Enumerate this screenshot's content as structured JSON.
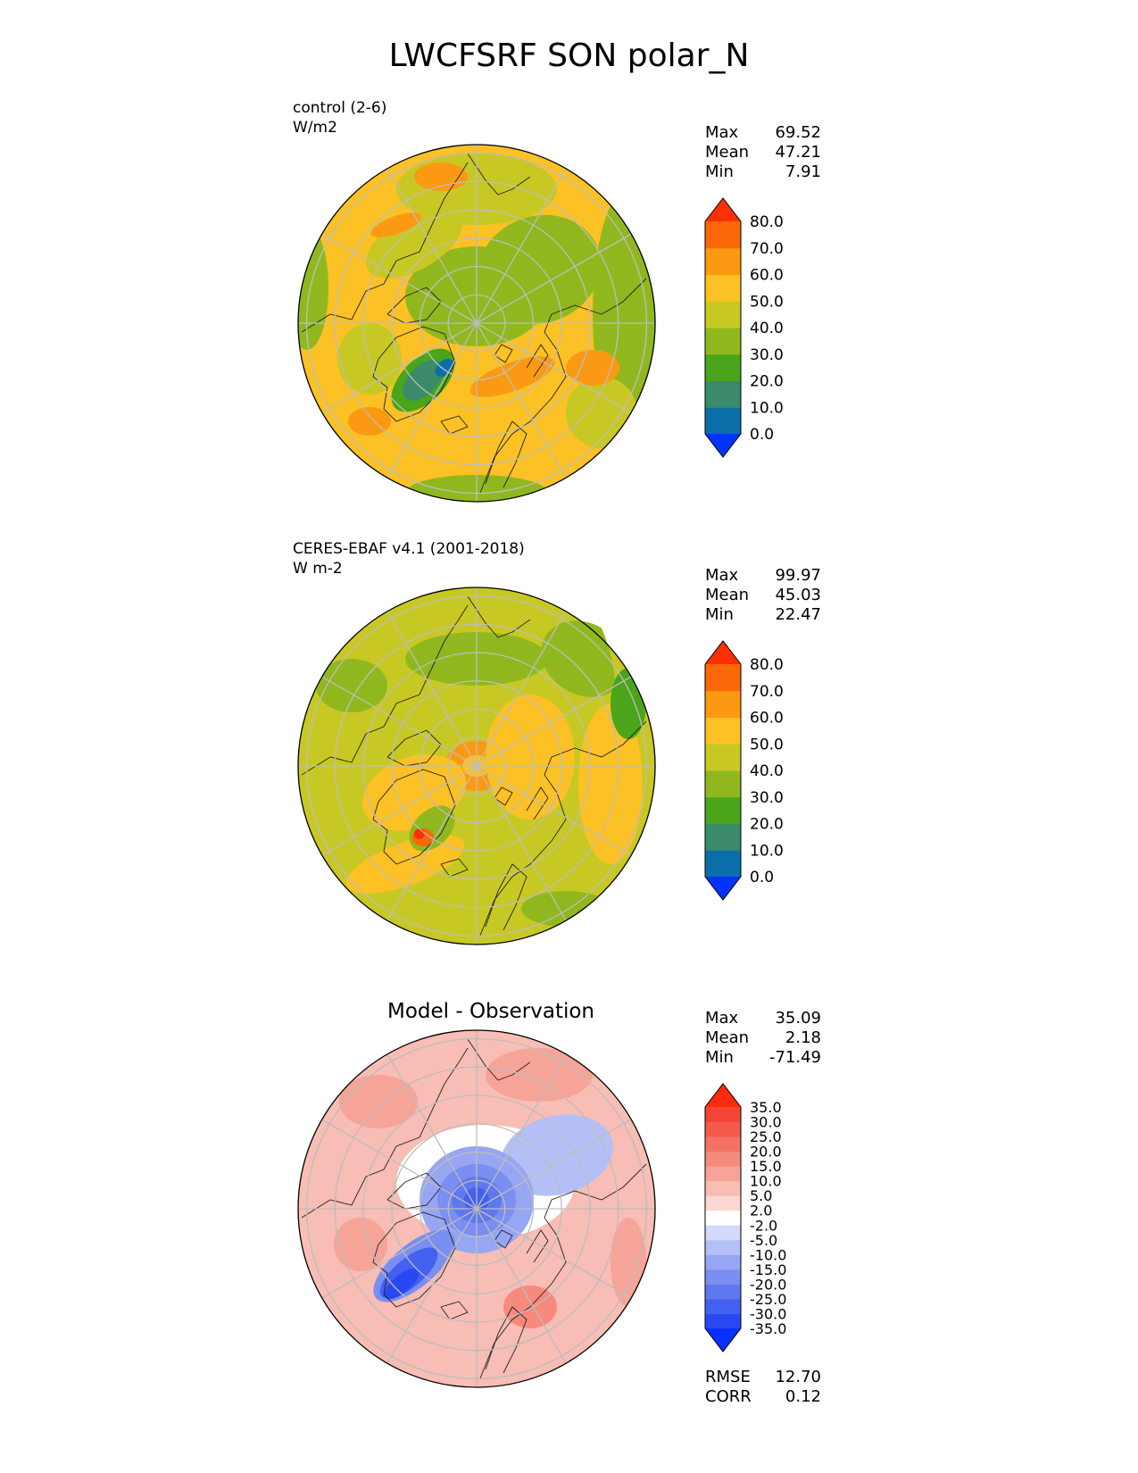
{
  "page_title": "LWCFSRF SON polar_N",
  "panels": [
    {
      "title": "control (2-6)",
      "units": "W/m2",
      "stats": {
        "max_label": "Max",
        "max": "69.52",
        "mean_label": "Mean",
        "mean": "47.21",
        "min_label": "Min",
        "min": "7.91"
      }
    },
    {
      "title": "CERES-EBAF v4.1 (2001-2018)",
      "units": "W m-2",
      "stats": {
        "max_label": "Max",
        "max": "99.97",
        "mean_label": "Mean",
        "mean": "45.03",
        "min_label": "Min",
        "min": "22.47"
      }
    },
    {
      "title": "Model - Observation",
      "stats": {
        "max_label": "Max",
        "max": "35.09",
        "mean_label": "Mean",
        "mean": "2.18",
        "min_label": "Min",
        "min": "-71.49"
      },
      "metrics": {
        "rmse_label": "RMSE",
        "rmse": "12.70",
        "corr_label": "CORR",
        "corr": "0.12"
      }
    }
  ],
  "chart_data": [
    {
      "type": "heatmap",
      "projection": "north-polar-stereographic",
      "title": "control (2-6)",
      "units": "W/m2",
      "colorbar_ticks": [
        "80.0",
        "70.0",
        "60.0",
        "50.0",
        "40.0",
        "30.0",
        "20.0",
        "10.0",
        "0.0"
      ],
      "colorbar_colors": [
        "#0033ff",
        "#0a6fa8",
        "#3b8a6a",
        "#4aa51a",
        "#90b81e",
        "#c8c824",
        "#fbc125",
        "#fb9a12",
        "#fa6808",
        "#fd2f04"
      ],
      "max": 69.52,
      "mean": 47.21,
      "min": 7.91,
      "extend": "both"
    },
    {
      "type": "heatmap",
      "projection": "north-polar-stereographic",
      "title": "CERES-EBAF v4.1 (2001-2018)",
      "units": "W m-2",
      "colorbar_ticks": [
        "80.0",
        "70.0",
        "60.0",
        "50.0",
        "40.0",
        "30.0",
        "20.0",
        "10.0",
        "0.0"
      ],
      "colorbar_colors": [
        "#0033ff",
        "#0a6fa8",
        "#3b8a6a",
        "#4aa51a",
        "#90b81e",
        "#c8c824",
        "#fbc125",
        "#fb9a12",
        "#fa6808",
        "#fd2f04"
      ],
      "max": 99.97,
      "mean": 45.03,
      "min": 22.47,
      "extend": "both"
    },
    {
      "type": "heatmap",
      "projection": "north-polar-stereographic",
      "title": "Model - Observation",
      "colorbar_ticks": [
        "35.0",
        "30.0",
        "25.0",
        "20.0",
        "15.0",
        "10.0",
        "5.0",
        "2.0",
        "-2.0",
        "-5.0",
        "-10.0",
        "-15.0",
        "-20.0",
        "-25.0",
        "-30.0",
        "-35.0"
      ],
      "colorbar_colors": [
        "#0a2fff",
        "#2a48f2",
        "#4361f0",
        "#5f78ef",
        "#7b8ef1",
        "#97a6f3",
        "#b4bff6",
        "#d2d9fb",
        "#ffffff",
        "#fbd8d4",
        "#f8bdb5",
        "#f6a398",
        "#f58a7d",
        "#f47264",
        "#f45b4c",
        "#f44436",
        "#fe2a0c"
      ],
      "max": 35.09,
      "mean": 2.18,
      "min": -71.49,
      "rmse": 12.7,
      "corr": 0.12,
      "extend": "both"
    }
  ]
}
